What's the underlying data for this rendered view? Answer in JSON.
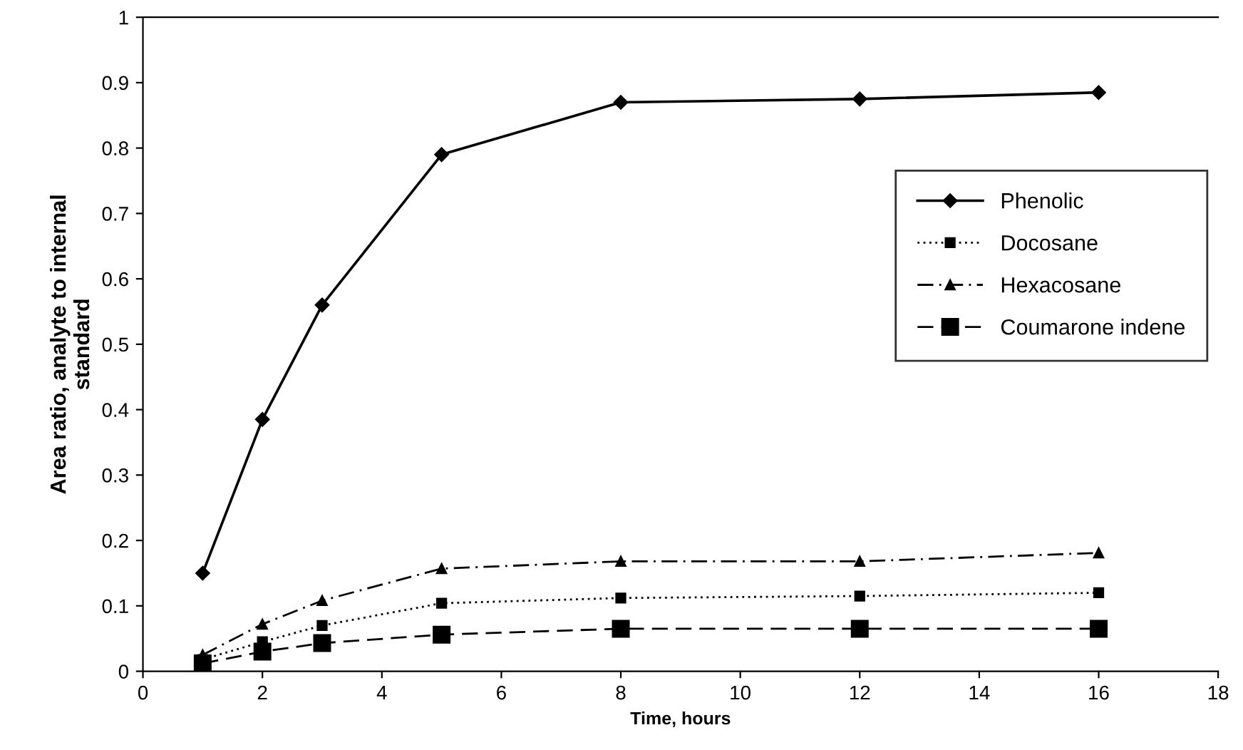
{
  "chart_data": {
    "type": "line",
    "xlabel": "Time, hours",
    "ylabel": "Area ratio, analyte to internal\nstandard",
    "x": [
      1,
      2,
      3,
      5,
      8,
      12,
      16
    ],
    "series": [
      {
        "name": "Phenolic",
        "color": "#000000",
        "marker": "diamond",
        "line_style": "solid",
        "values": [
          0.15,
          0.385,
          0.56,
          0.79,
          0.87,
          0.875,
          0.885
        ]
      },
      {
        "name": "Docosane",
        "color": "#000000",
        "marker": "square",
        "line_style": "dotted",
        "values": [
          0.018,
          0.045,
          0.07,
          0.104,
          0.112,
          0.115,
          0.12
        ]
      },
      {
        "name": "Hexacosane",
        "color": "#000000",
        "marker": "triangle",
        "line_style": "dashdot",
        "values": [
          0.025,
          0.072,
          0.108,
          0.157,
          0.168,
          0.168,
          0.181
        ]
      },
      {
        "name": "Coumarone indene",
        "color": "#000000",
        "marker": "square",
        "line_style": "dashed",
        "values": [
          0.012,
          0.03,
          0.043,
          0.056,
          0.065,
          0.065,
          0.065
        ]
      }
    ],
    "xlim": [
      0,
      18
    ],
    "xticks": [
      0,
      2,
      4,
      6,
      8,
      10,
      12,
      14,
      16,
      18
    ],
    "ylim": [
      0,
      1
    ],
    "yticks": [
      0,
      0.1,
      0.2,
      0.3,
      0.4,
      0.5,
      0.6,
      0.7,
      0.8,
      0.9,
      1
    ],
    "grid": false,
    "legend": "right"
  }
}
